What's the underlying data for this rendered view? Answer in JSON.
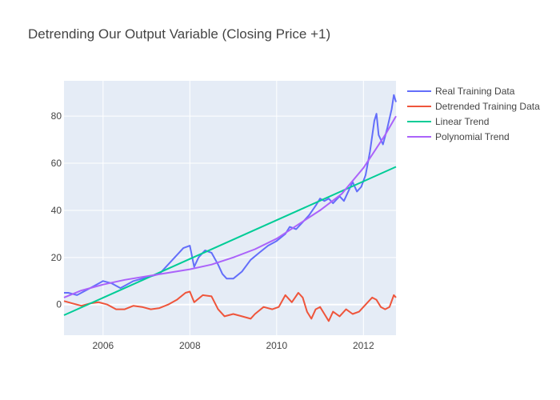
{
  "title": "Detrending Our Output Variable (Closing Price +1)",
  "chart_data": {
    "type": "line",
    "title": "Detrending Our Output Variable (Closing Price +1)",
    "xlabel": "",
    "ylabel": "",
    "xlim": [
      2005.1,
      2012.75
    ],
    "ylim": [
      -13,
      95
    ],
    "x_ticks": [
      2006,
      2008,
      2010,
      2012
    ],
    "x_tick_labels": [
      "2006",
      "2008",
      "2010",
      "2012"
    ],
    "y_ticks": [
      0,
      20,
      40,
      60,
      80
    ],
    "y_tick_labels": [
      "0",
      "20",
      "40",
      "60",
      "80"
    ],
    "grid": true,
    "legend_position": "right",
    "series": [
      {
        "name": "Real Training Data",
        "color": "#636efa",
        "x": [
          2005.1,
          2005.2,
          2005.4,
          2005.6,
          2005.8,
          2006.0,
          2006.2,
          2006.4,
          2006.5,
          2006.7,
          2006.9,
          2007.1,
          2007.3,
          2007.45,
          2007.6,
          2007.75,
          2007.85,
          2008.0,
          2008.1,
          2008.2,
          2008.35,
          2008.5,
          2008.65,
          2008.75,
          2008.85,
          2009.0,
          2009.2,
          2009.4,
          2009.6,
          2009.8,
          2010.0,
          2010.2,
          2010.3,
          2010.45,
          2010.6,
          2010.75,
          2010.9,
          2011.0,
          2011.1,
          2011.2,
          2011.3,
          2011.45,
          2011.55,
          2011.65,
          2011.75,
          2011.85,
          2011.95,
          2012.05,
          2012.15,
          2012.25,
          2012.3,
          2012.35,
          2012.45,
          2012.55,
          2012.65,
          2012.7,
          2012.75
        ],
        "values": [
          5,
          5,
          4,
          6,
          8,
          10,
          9,
          7,
          8,
          10,
          11,
          12,
          13,
          16,
          19,
          22,
          24,
          25,
          16,
          20,
          23,
          22,
          17,
          13,
          11,
          11,
          14,
          19,
          22,
          25,
          27,
          30,
          33,
          32,
          35,
          38,
          42,
          45,
          44,
          45,
          43,
          46,
          44,
          48,
          52,
          48,
          50,
          55,
          65,
          78,
          81,
          72,
          68,
          75,
          83,
          89,
          86
        ]
      },
      {
        "name": "Detrended Training Data",
        "color": "#ef553b",
        "x": [
          2005.1,
          2005.3,
          2005.5,
          2005.7,
          2005.9,
          2006.1,
          2006.3,
          2006.5,
          2006.7,
          2006.9,
          2007.1,
          2007.3,
          2007.5,
          2007.7,
          2007.9,
          2008.0,
          2008.1,
          2008.3,
          2008.5,
          2008.65,
          2008.8,
          2009.0,
          2009.2,
          2009.4,
          2009.5,
          2009.7,
          2009.9,
          2010.05,
          2010.2,
          2010.35,
          2010.5,
          2010.6,
          2010.7,
          2010.8,
          2010.9,
          2011.0,
          2011.1,
          2011.2,
          2011.3,
          2011.45,
          2011.6,
          2011.75,
          2011.9,
          2012.0,
          2012.1,
          2012.2,
          2012.3,
          2012.4,
          2012.5,
          2012.6,
          2012.7,
          2012.75
        ],
        "values": [
          1.5,
          0.5,
          -0.5,
          0.5,
          1,
          0,
          -2,
          -2,
          -0.5,
          -1,
          -2,
          -1.5,
          0,
          2,
          5,
          5.5,
          1,
          4,
          3.5,
          -2,
          -5,
          -4,
          -5,
          -6,
          -4,
          -1,
          -2,
          -1,
          4,
          1,
          5,
          3,
          -3,
          -6,
          -2,
          -1,
          -4,
          -7,
          -3,
          -5,
          -2,
          -4,
          -3,
          -1,
          1,
          3,
          2,
          -1,
          -2,
          -1,
          4,
          3
        ]
      },
      {
        "name": "Linear Trend",
        "color": "#00cc96",
        "x": [
          2005.1,
          2012.75
        ],
        "values": [
          -4.5,
          58.5
        ]
      },
      {
        "name": "Polynomial Trend",
        "color": "#ab63fa",
        "x": [
          2005.1,
          2005.5,
          2006.0,
          2006.5,
          2007.0,
          2007.5,
          2008.0,
          2008.5,
          2009.0,
          2009.5,
          2010.0,
          2010.5,
          2011.0,
          2011.5,
          2012.0,
          2012.25,
          2012.5,
          2012.75
        ],
        "values": [
          3,
          6,
          8.5,
          10.5,
          12,
          13.5,
          15,
          17,
          20,
          23.5,
          28,
          34,
          40,
          47,
          58,
          65,
          72,
          80
        ]
      }
    ]
  }
}
